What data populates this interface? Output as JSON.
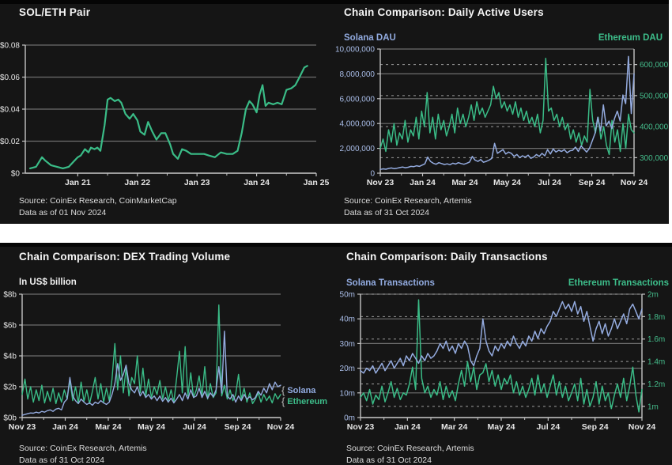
{
  "colors": {
    "solana_blue": "#94abdf",
    "ethereum_green": "#3abc87",
    "grid": "#6e6e6e",
    "grid_dashed": "#9c9c9c",
    "axis": "#c4c4c4",
    "tick_text": "#e6e6e6",
    "left_tick_blue": "#a9bde8",
    "right_tick_green": "#45bd8c",
    "panel_bg": "#151515",
    "page_bg": "#ffffff"
  },
  "panels": [
    {
      "title": "SOL/ETH Pair",
      "source": "Source: CoinEx Research, CoinMarketCap",
      "asof": "Data as of 01 Nov 2024"
    },
    {
      "title": "Chain Comparison: Daily Active Users",
      "left_label": "Solana DAU",
      "right_label": "Ethereum DAU",
      "source": "Source: CoinEx Research, Artemis",
      "asof": "Data as of 31 Oct 2024"
    },
    {
      "title": "Chain Comparison: DEX Trading Volume",
      "subtitle": "In US$ billion",
      "legend_solana": "Solana",
      "legend_ethereum": "Ethereum",
      "source": "Source: CoinEx Research, Artemis",
      "asof": "Data as of 31 Oct 2024"
    },
    {
      "title": "Chain Comparison: Daily Transactions",
      "left_label": "Solana Transactions",
      "right_label": "Ethereum Transactions",
      "source": "Source: CoinEx Research, Artemis",
      "asof": "Data as of 31 Oct 2024"
    }
  ],
  "chart_data": [
    {
      "id": "sol_eth",
      "type": "line",
      "title": "SOL/ETH Pair",
      "plot": {
        "l": 32,
        "t": 57,
        "r": 400,
        "b": 219
      },
      "left_axis": {
        "min": 0,
        "max": 0.08,
        "color": "#e6e6e6",
        "ticks": [
          {
            "v": 0,
            "label": "$0"
          },
          {
            "v": 0.02,
            "label": "$0.02"
          },
          {
            "v": 0.04,
            "label": "$0.04"
          },
          {
            "v": 0.06,
            "label": "$0.06"
          },
          {
            "v": 0.08,
            "label": "$0.08"
          }
        ]
      },
      "x_axis": {
        "type": "value",
        "min": 2020.12,
        "max": 2025.0,
        "ticks": [
          {
            "v": 2021,
            "label": "Jan 21"
          },
          {
            "v": 2022,
            "label": "Jan 22"
          },
          {
            "v": 2023,
            "label": "Jan 23"
          },
          {
            "v": 2024,
            "label": "Jan 24"
          },
          {
            "v": 2025,
            "label": "Jan 25"
          }
        ]
      },
      "series": [
        {
          "name": "SOL/ETH",
          "color": "#3abc87",
          "width": 2.2,
          "axis": "left",
          "x": [
            2020.2,
            2020.3,
            2020.4,
            2020.45,
            2020.55,
            2020.65,
            2020.75,
            2020.85,
            2020.95,
            2021.0,
            2021.05,
            2021.12,
            2021.18,
            2021.22,
            2021.28,
            2021.33,
            2021.38,
            2021.45,
            2021.5,
            2021.55,
            2021.62,
            2021.68,
            2021.73,
            2021.8,
            2021.87,
            2021.93,
            2022.0,
            2022.05,
            2022.12,
            2022.18,
            2022.25,
            2022.32,
            2022.4,
            2022.47,
            2022.55,
            2022.6,
            2022.68,
            2022.75,
            2022.82,
            2022.9,
            2022.97,
            2023.05,
            2023.12,
            2023.2,
            2023.3,
            2023.4,
            2023.5,
            2023.6,
            2023.68,
            2023.75,
            2023.82,
            2023.88,
            2023.93,
            2024.0,
            2024.05,
            2024.1,
            2024.15,
            2024.2,
            2024.28,
            2024.35,
            2024.42,
            2024.5,
            2024.58,
            2024.65,
            2024.72,
            2024.8,
            2024.85
          ],
          "values": [
            0.003,
            0.004,
            0.01,
            0.008,
            0.005,
            0.004,
            0.003,
            0.004,
            0.008,
            0.01,
            0.011,
            0.015,
            0.013,
            0.016,
            0.015,
            0.016,
            0.014,
            0.03,
            0.046,
            0.047,
            0.045,
            0.046,
            0.044,
            0.037,
            0.034,
            0.037,
            0.033,
            0.026,
            0.024,
            0.032,
            0.026,
            0.021,
            0.025,
            0.025,
            0.018,
            0.012,
            0.009,
            0.015,
            0.014,
            0.012,
            0.012,
            0.012,
            0.012,
            0.011,
            0.01,
            0.013,
            0.012,
            0.012,
            0.014,
            0.025,
            0.04,
            0.045,
            0.043,
            0.038,
            0.049,
            0.055,
            0.042,
            0.044,
            0.043,
            0.044,
            0.043,
            0.052,
            0.053,
            0.055,
            0.06,
            0.066,
            0.067
          ]
        }
      ]
    },
    {
      "id": "dau",
      "type": "line",
      "title": "Chain Comparison: Daily Active Users",
      "plot": {
        "l": 56,
        "t": 62,
        "r": 377,
        "b": 219
      },
      "left_axis": {
        "min": 0,
        "max": 10,
        "color": "#a9bde8",
        "ticks": [
          {
            "v": 0,
            "label": "0"
          },
          {
            "v": 2,
            "label": "2,000,000"
          },
          {
            "v": 4,
            "label": "4,000,000"
          },
          {
            "v": 6,
            "label": "6,000,000"
          },
          {
            "v": 8,
            "label": "8,000,000"
          },
          {
            "v": 10,
            "label": "10,000,000"
          }
        ]
      },
      "right_axis": {
        "min": 250,
        "max": 650,
        "color": "#45bd8c",
        "ticks": [
          {
            "v": 300,
            "label": "300,000"
          },
          {
            "v": 400,
            "label": "400,000"
          },
          {
            "v": 500,
            "label": "500,000"
          },
          {
            "v": 600,
            "label": "600,000"
          }
        ]
      },
      "x_axis": {
        "type": "category",
        "labels": [
          "Nov 23",
          "Jan 24",
          "Mar 24",
          "May 24",
          "Jul 24",
          "Sep 24",
          "Nov 24"
        ]
      },
      "series": [
        {
          "name": "Ethereum DAU (thousands, right axis)",
          "color": "#3abc87",
          "width": 1.5,
          "axis": "right",
          "values": [
            330,
            360,
            320,
            390,
            350,
            410,
            340,
            380,
            360,
            420,
            350,
            390,
            370,
            430,
            360,
            450,
            400,
            510,
            380,
            430,
            360,
            440,
            390,
            420,
            370,
            400,
            440,
            380,
            460,
            410,
            440,
            400,
            430,
            470,
            420,
            480,
            440,
            460,
            430,
            450,
            470,
            530,
            490,
            510,
            460,
            480,
            450,
            470,
            440,
            480,
            430,
            460,
            420,
            450,
            410,
            430,
            400,
            440,
            380,
            420,
            620,
            450,
            460,
            420,
            440,
            400,
            430,
            390,
            410,
            360,
            390,
            350,
            380,
            340,
            370,
            350,
            520,
            420,
            380,
            430,
            360,
            400,
            340,
            310,
            420,
            350,
            390,
            320,
            410,
            330,
            440,
            390,
            380
          ]
        },
        {
          "name": "Solana DAU (millions, left axis)",
          "color": "#94abdf",
          "width": 1.5,
          "axis": "left",
          "values": [
            0.3,
            0.35,
            0.32,
            0.38,
            0.42,
            0.36,
            0.4,
            0.45,
            0.5,
            0.44,
            0.48,
            0.55,
            0.52,
            0.6,
            0.55,
            0.65,
            0.75,
            1.3,
            0.95,
            0.8,
            0.72,
            0.85,
            0.78,
            0.7,
            0.75,
            0.68,
            0.8,
            0.74,
            0.85,
            0.78,
            0.72,
            0.8,
            0.9,
            1.35,
            1.05,
            0.95,
            1.1,
            0.88,
            0.95,
            1.05,
            1.2,
            2.4,
            1.6,
            1.75,
            1.9,
            1.55,
            1.7,
            1.6,
            1.35,
            1.5,
            1.25,
            1.4,
            1.3,
            1.45,
            1.2,
            1.3,
            1.5,
            1.35,
            1.6,
            1.4,
            1.9,
            1.55,
            1.95,
            1.7,
            1.85,
            1.75,
            1.9,
            1.65,
            1.8,
            1.85,
            2.1,
            1.75,
            2.2,
            1.95,
            1.7,
            2.0,
            2.6,
            3.2,
            4.5,
            3.4,
            5.5,
            3.8,
            4.2,
            3.6,
            4.4,
            5.0,
            4.2,
            6.3,
            5.6,
            9.4,
            4.8,
            8.0
          ]
        }
      ]
    },
    {
      "id": "dex",
      "type": "line",
      "title": "Chain Comparison: DEX Trading Volume",
      "ylabel": "In US$ billion",
      "plot": {
        "l": 28,
        "t": 65,
        "r": 355,
        "b": 221
      },
      "left_axis": {
        "min": 0,
        "max": 8,
        "color": "#e6e6e6",
        "ticks": [
          {
            "v": 0,
            "label": "$0b"
          },
          {
            "v": 2,
            "label": "$2b"
          },
          {
            "v": 4,
            "label": "$4b"
          },
          {
            "v": 6,
            "label": "$6b"
          },
          {
            "v": 8,
            "label": "$8b"
          }
        ]
      },
      "x_axis": {
        "type": "category",
        "labels": [
          "Nov 23",
          "Jan 24",
          "Mar 24",
          "May 24",
          "Jul 24",
          "Sep 24",
          "Nov 24"
        ]
      },
      "series": [
        {
          "name": "Ethereum DEX volume ($b)",
          "color": "#3abc87",
          "width": 1.4,
          "axis": "left",
          "values": [
            1.5,
            2.5,
            1.2,
            2.0,
            1.0,
            1.8,
            1.1,
            2.1,
            0.95,
            1.7,
            1.05,
            1.9,
            0.9,
            1.6,
            1.0,
            1.8,
            1.2,
            2.4,
            1.1,
            2.0,
            0.95,
            2.3,
            1.05,
            1.8,
            0.9,
            1.7,
            2.6,
            1.2,
            2.2,
            1.0,
            1.9,
            1.1,
            2.5,
            4.8,
            1.8,
            4.0,
            1.6,
            3.2,
            1.4,
            2.6,
            2.2,
            4.0,
            1.6,
            3.2,
            1.4,
            2.5,
            1.3,
            2.0,
            1.5,
            2.4,
            1.2,
            2.0,
            1.1,
            1.8,
            1.0,
            2.6,
            4.3,
            1.6,
            4.6,
            1.4,
            2.9,
            1.3,
            1.8,
            2.7,
            1.4,
            3.3,
            1.2,
            2.2,
            1.3,
            1.6,
            7.3,
            1.4,
            2.1,
            1.2,
            1.8,
            1.1,
            1.5,
            2.8,
            1.2,
            1.9,
            1.0,
            1.6,
            0.9,
            1.2,
            1.6,
            1.0,
            1.5,
            1.1,
            1.4,
            0.95,
            1.55,
            1.2,
            1.5
          ]
        },
        {
          "name": "Solana DEX volume ($b)",
          "color": "#94abdf",
          "width": 1.4,
          "axis": "left",
          "values": [
            0.15,
            0.2,
            0.25,
            0.3,
            0.28,
            0.35,
            0.3,
            0.4,
            0.35,
            0.45,
            0.5,
            0.4,
            0.55,
            0.6,
            0.5,
            1.0,
            1.2,
            2.6,
            1.4,
            1.1,
            0.9,
            1.2,
            1.0,
            0.85,
            0.95,
            0.8,
            1.0,
            0.9,
            1.1,
            0.95,
            0.85,
            1.0,
            1.5,
            2.2,
            3.5,
            2.4,
            2.8,
            3.4,
            2.2,
            1.8,
            1.6,
            2.0,
            1.4,
            1.7,
            1.3,
            1.5,
            1.2,
            1.4,
            1.1,
            1.4,
            1.05,
            1.3,
            1.0,
            1.25,
            0.95,
            1.2,
            1.5,
            1.1,
            1.6,
            1.2,
            1.8,
            1.3,
            1.4,
            1.9,
            1.3,
            1.7,
            1.25,
            1.6,
            1.35,
            1.8,
            3.3,
            1.6,
            5.6,
            1.4,
            1.2,
            1.5,
            1.0,
            1.4,
            1.1,
            1.5,
            1.2,
            1.35,
            1.15,
            1.3,
            1.7,
            1.45,
            1.9,
            1.6,
            2.2,
            1.8,
            2.3,
            2.0,
            2.1
          ]
        }
      ]
    },
    {
      "id": "tx",
      "type": "line",
      "title": "Chain Comparison: Daily Transactions",
      "plot": {
        "l": 28,
        "t": 65,
        "r": 384,
        "b": 221
      },
      "left_axis": {
        "min": 0,
        "max": 50,
        "color": "#a9bde8",
        "ticks": [
          {
            "v": 0,
            "label": "0m"
          },
          {
            "v": 10,
            "label": "10m"
          },
          {
            "v": 20,
            "label": "20m"
          },
          {
            "v": 30,
            "label": "30m"
          },
          {
            "v": 40,
            "label": "40m"
          },
          {
            "v": 50,
            "label": "50m"
          }
        ]
      },
      "right_axis": {
        "min": 0.9,
        "max": 2.0,
        "color": "#45bd8c",
        "ticks": [
          {
            "v": 1,
            "label": "1m"
          },
          {
            "v": 1.2,
            "label": "1.2m"
          },
          {
            "v": 1.4,
            "label": "1.4m"
          },
          {
            "v": 1.6,
            "label": "1.6m"
          },
          {
            "v": 1.8,
            "label": "1.8m"
          },
          {
            "v": 2,
            "label": "2m"
          }
        ]
      },
      "x_axis": {
        "type": "category",
        "labels": [
          "Nov 23",
          "Jan 24",
          "Mar 24",
          "May 24",
          "Jul 24",
          "Sep 24",
          "Nov 24"
        ]
      },
      "series": [
        {
          "name": "Ethereum transactions (m, right axis)",
          "color": "#3abc87",
          "width": 1.5,
          "axis": "right",
          "values": [
            1.08,
            1.12,
            1.05,
            1.15,
            1.02,
            1.1,
            1.06,
            1.18,
            1.04,
            1.12,
            1.22,
            1.08,
            1.16,
            1.06,
            1.12,
            1.1,
            1.2,
            1.35,
            1.15,
            1.95,
            1.25,
            1.12,
            1.18,
            1.08,
            1.15,
            1.1,
            1.22,
            1.06,
            1.18,
            1.08,
            1.14,
            1.05,
            1.2,
            1.32,
            1.18,
            1.4,
            1.22,
            1.35,
            1.15,
            1.28,
            1.3,
            1.38,
            1.22,
            1.32,
            1.18,
            1.28,
            1.15,
            1.25,
            1.2,
            1.28,
            1.12,
            1.22,
            1.1,
            1.18,
            1.08,
            1.15,
            1.25,
            1.1,
            1.28,
            1.12,
            1.2,
            1.08,
            1.18,
            1.28,
            1.1,
            1.22,
            1.08,
            1.18,
            1.05,
            1.12,
            1.2,
            1.05,
            1.25,
            1.02,
            1.15,
            1.0,
            1.08,
            1.22,
            1.02,
            1.18,
            1.05,
            1.12,
            0.98,
            1.1,
            1.2,
            1.08,
            1.25,
            1.05,
            1.18,
            1.35,
            1.1,
            0.95,
            1.15
          ]
        },
        {
          "name": "Solana transactions (m, left axis)",
          "color": "#94abdf",
          "width": 1.5,
          "axis": "left",
          "values": [
            19,
            18,
            20,
            19,
            21,
            18,
            20,
            22,
            19,
            21,
            23,
            20,
            22,
            24,
            21,
            25,
            23,
            26,
            24,
            22,
            25,
            23,
            26,
            24,
            25,
            27,
            30,
            28,
            31,
            27,
            29,
            26,
            30,
            28,
            31,
            29,
            23,
            21,
            25,
            28,
            40,
            31,
            27,
            25,
            29,
            27,
            30,
            28,
            31,
            29,
            33,
            30,
            28,
            31,
            29,
            33,
            31,
            35,
            32,
            36,
            34,
            37,
            39,
            43,
            41,
            44,
            47,
            44,
            46,
            43,
            47,
            42,
            45,
            39,
            43,
            37,
            31,
            36,
            39,
            34,
            38,
            33,
            36,
            40,
            36,
            39,
            42,
            38,
            44,
            46,
            43,
            40,
            44
          ]
        }
      ]
    }
  ]
}
